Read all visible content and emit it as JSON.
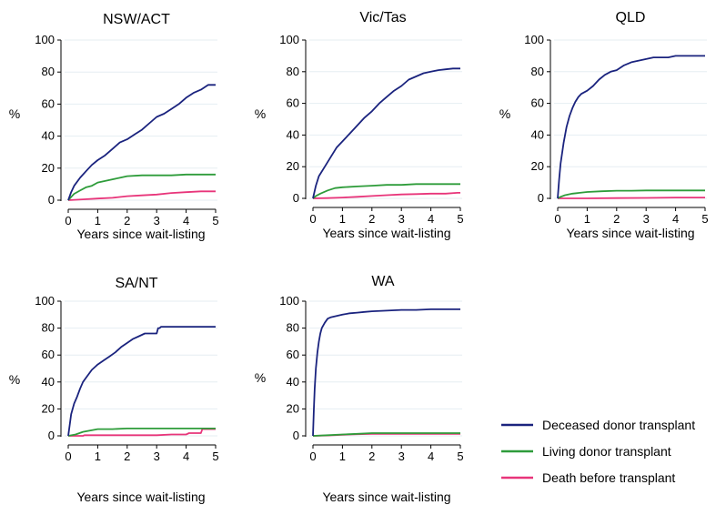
{
  "chart_data": {
    "type": "line",
    "legend": {
      "placement": "bottom-right",
      "entries": [
        "Deceased donor transplant",
        "Living donor transplant",
        "Death before transplant"
      ]
    },
    "series_colors": [
      "#1a237e",
      "#2e9c3a",
      "#e8357a"
    ],
    "panels": [
      {
        "title": "NSW/ACT",
        "xlabel": "Years since wait-listing",
        "ylabel": "%",
        "xlim": [
          0,
          5
        ],
        "ylim": [
          0,
          100
        ],
        "xticks": [
          "0",
          "1",
          "2",
          "3",
          "4",
          "5"
        ],
        "yticks": [
          "0",
          "20",
          "40",
          "60",
          "80",
          "100"
        ],
        "grid": true,
        "series": [
          {
            "name": "Deceased donor transplant",
            "x": [
              0,
              0.1,
              0.2,
              0.4,
              0.6,
              0.8,
              1,
              1.25,
              1.5,
              1.75,
              2,
              2.25,
              2.5,
              2.75,
              3,
              3.25,
              3.5,
              3.75,
              4,
              4.25,
              4.5,
              4.75,
              5
            ],
            "y": [
              0,
              5,
              9,
              14,
              18,
              22,
              25,
              28,
              32,
              36,
              38,
              41,
              44,
              48,
              52,
              54,
              57,
              60,
              64,
              67,
              69,
              72,
              72
            ]
          },
          {
            "name": "Living donor transplant",
            "x": [
              0,
              0.1,
              0.2,
              0.4,
              0.6,
              0.8,
              1,
              1.25,
              1.5,
              1.75,
              2,
              2.5,
              3,
              3.5,
              4,
              4.5,
              5
            ],
            "y": [
              0,
              2,
              4,
              6,
              8,
              9,
              11,
              12,
              13,
              14,
              15,
              15.5,
              15.5,
              15.5,
              16,
              16,
              16
            ]
          },
          {
            "name": "Death before transplant",
            "x": [
              0,
              0.5,
              1,
              1.5,
              2,
              2.5,
              3,
              3.5,
              4,
              4.5,
              5
            ],
            "y": [
              0,
              0.5,
              1,
              1.5,
              2.5,
              3,
              3.5,
              4.5,
              5,
              5.5,
              5.5
            ]
          }
        ]
      },
      {
        "title": "Vic/Tas",
        "xlabel": "Years since wait-listing",
        "ylabel": "%",
        "xlim": [
          0,
          5
        ],
        "ylim": [
          0,
          100
        ],
        "xticks": [
          "0",
          "1",
          "2",
          "3",
          "4",
          "5"
        ],
        "yticks": [
          "0",
          "20",
          "40",
          "60",
          "80",
          "100"
        ],
        "grid": true,
        "series": [
          {
            "name": "Deceased donor transplant",
            "x": [
              0,
              0.1,
              0.2,
              0.4,
              0.6,
              0.8,
              1,
              1.25,
              1.5,
              1.75,
              2,
              2.25,
              2.5,
              2.75,
              3,
              3.25,
              3.5,
              3.75,
              4,
              4.25,
              4.5,
              4.75,
              5
            ],
            "y": [
              0,
              8,
              14,
              20,
              26,
              32,
              36,
              41,
              46,
              51,
              55,
              60,
              64,
              68,
              71,
              75,
              77,
              79,
              80,
              81,
              81.5,
              82,
              82
            ]
          },
          {
            "name": "Living donor transplant",
            "x": [
              0,
              0.1,
              0.25,
              0.5,
              0.75,
              1,
              1.5,
              2,
              2.5,
              3,
              3.5,
              4,
              4.5,
              5
            ],
            "y": [
              0,
              1.5,
              3,
              5,
              6.5,
              7,
              7.5,
              8,
              8.5,
              8.5,
              9,
              9,
              9,
              9
            ]
          },
          {
            "name": "Death before transplant",
            "x": [
              0,
              0.5,
              1,
              1.5,
              2,
              2.5,
              3,
              3.5,
              4,
              4.5,
              4.9,
              5
            ],
            "y": [
              0,
              0.2,
              0.5,
              1,
              1.5,
              2,
              2.5,
              2.7,
              3,
              3,
              3.5,
              3.5
            ]
          }
        ]
      },
      {
        "title": "QLD",
        "xlabel": "Years since wait-listing",
        "ylabel": "%",
        "xlim": [
          0,
          5
        ],
        "ylim": [
          0,
          100
        ],
        "xticks": [
          "0",
          "1",
          "2",
          "3",
          "4",
          "5"
        ],
        "yticks": [
          "0",
          "20",
          "40",
          "60",
          "80",
          "100"
        ],
        "grid": true,
        "series": [
          {
            "name": "Deceased donor transplant",
            "x": [
              0,
              0.05,
              0.1,
              0.2,
              0.3,
              0.4,
              0.5,
              0.6,
              0.7,
              0.8,
              1,
              1.2,
              1.4,
              1.6,
              1.8,
              2,
              2.25,
              2.5,
              2.75,
              3,
              3.25,
              3.5,
              3.75,
              4,
              4.25,
              4.5,
              5
            ],
            "y": [
              0,
              12,
              22,
              35,
              45,
              52,
              57,
              61,
              64,
              66,
              68,
              71,
              75,
              78,
              80,
              81,
              84,
              86,
              87,
              88,
              89,
              89,
              89,
              90,
              90,
              90,
              90
            ]
          },
          {
            "name": "Living donor transplant",
            "x": [
              0,
              0.1,
              0.25,
              0.5,
              0.75,
              1,
              1.5,
              2,
              2.5,
              3,
              3.5,
              4,
              4.5,
              5
            ],
            "y": [
              0,
              1,
              2,
              3,
              3.5,
              4,
              4.5,
              4.8,
              4.8,
              5,
              5,
              5,
              5,
              5
            ]
          },
          {
            "name": "Death before transplant",
            "x": [
              0,
              1,
              2,
              3,
              4,
              5
            ],
            "y": [
              0,
              0,
              0.2,
              0.3,
              0.5,
              0.5
            ]
          }
        ]
      },
      {
        "title": "SA/NT",
        "xlabel": "Years since wait-listing",
        "ylabel": "%",
        "xlim": [
          0,
          5
        ],
        "ylim": [
          0,
          100
        ],
        "xticks": [
          "0",
          "1",
          "2",
          "3",
          "4",
          "5"
        ],
        "yticks": [
          "0",
          "20",
          "40",
          "60",
          "80",
          "100"
        ],
        "grid": true,
        "series": [
          {
            "name": "Deceased donor transplant",
            "x": [
              0,
              0.05,
              0.1,
              0.2,
              0.3,
              0.4,
              0.5,
              0.6,
              0.7,
              0.8,
              0.9,
              1,
              1.2,
              1.4,
              1.6,
              1.8,
              2,
              2.2,
              2.4,
              2.6,
              2.8,
              3,
              3.05,
              3.1,
              3.15,
              3.5,
              4,
              4.5,
              5
            ],
            "y": [
              0,
              8,
              16,
              24,
              29,
              35,
              40,
              43,
              46,
              49,
              51,
              53,
              56,
              59,
              62,
              66,
              69,
              72,
              74,
              76,
              76,
              76,
              80,
              80,
              81,
              81,
              81,
              81,
              81
            ]
          },
          {
            "name": "Living donor transplant",
            "x": [
              0,
              0.25,
              0.5,
              0.75,
              1,
              1.5,
              2,
              2.5,
              3,
              3.5,
              4,
              4.5,
              5
            ],
            "y": [
              0,
              1,
              3,
              4,
              5,
              5,
              5.5,
              5.5,
              5.5,
              5.5,
              5.5,
              5.5,
              5.5
            ]
          },
          {
            "name": "Death before transplant",
            "x": [
              0,
              0.5,
              0.55,
              1,
              2,
              3,
              3.5,
              4,
              4.1,
              4.5,
              4.55,
              5
            ],
            "y": [
              0,
              0,
              0.5,
              0.5,
              0.5,
              0.5,
              1,
              1,
              2,
              2,
              5,
              5
            ]
          }
        ]
      },
      {
        "title": "WA",
        "xlabel": "Years since wait-listing",
        "ylabel": "%",
        "xlim": [
          0,
          5
        ],
        "ylim": [
          0,
          100
        ],
        "xticks": [
          "0",
          "1",
          "2",
          "3",
          "4",
          "5"
        ],
        "yticks": [
          "0",
          "20",
          "40",
          "60",
          "80",
          "100"
        ],
        "grid": true,
        "series": [
          {
            "name": "Deceased donor transplant",
            "x": [
              0,
              0.03,
              0.06,
              0.1,
              0.15,
              0.2,
              0.25,
              0.3,
              0.4,
              0.5,
              0.6,
              0.8,
              1,
              1.25,
              1.5,
              1.75,
              2,
              2.5,
              3,
              3.5,
              4,
              4.5,
              5
            ],
            "y": [
              0,
              20,
              35,
              50,
              62,
              70,
              76,
              80,
              84,
              87,
              88,
              89,
              90,
              91,
              91.5,
              92,
              92.5,
              93,
              93.5,
              93.5,
              94,
              94,
              94
            ]
          },
          {
            "name": "Living donor transplant",
            "x": [
              0,
              0.5,
              1,
              1.5,
              2,
              3,
              4,
              5
            ],
            "y": [
              0,
              0.5,
              1,
              1.5,
              2,
              2,
              2,
              2
            ]
          },
          {
            "name": "Death before transplant",
            "x": [
              0,
              0.5,
              1,
              1.5,
              2,
              3,
              4,
              5
            ],
            "y": [
              0,
              0.3,
              0.8,
              1.2,
              1.5,
              1.5,
              1.5,
              1.5
            ]
          }
        ]
      }
    ]
  }
}
